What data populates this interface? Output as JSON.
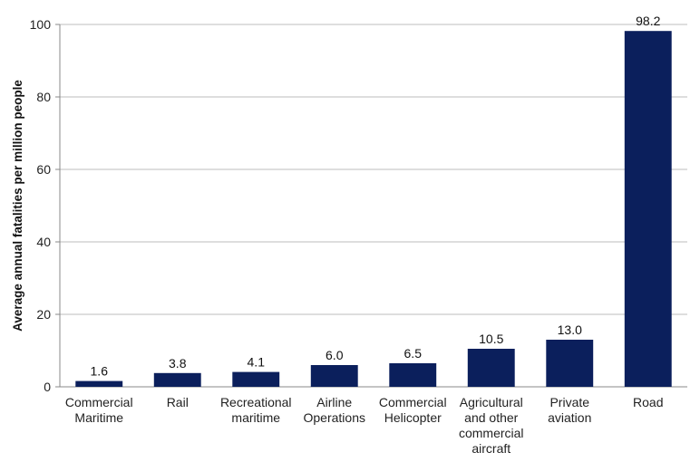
{
  "chart_data": {
    "type": "bar",
    "title": "",
    "xlabel": "",
    "ylabel": "Average annual fatalities per million people",
    "ylim": [
      0,
      100
    ],
    "yticks": [
      "0",
      "20",
      "40",
      "60",
      "80",
      "100"
    ],
    "grid": true,
    "legend": "none",
    "bar_color": "#0b1f5c",
    "categories": [
      [
        "Commercial",
        "Maritime"
      ],
      [
        "Rail"
      ],
      [
        "Recreational",
        "maritime"
      ],
      [
        "Airline",
        "Operations"
      ],
      [
        "Commercial",
        "Helicopter"
      ],
      [
        "Agricultural",
        "and other",
        "commercial",
        "aircraft"
      ],
      [
        "Private",
        "aviation"
      ],
      [
        "Road"
      ]
    ],
    "values": [
      1.6,
      3.8,
      4.1,
      6.0,
      6.5,
      10.5,
      13.0,
      98.2
    ],
    "value_labels": [
      "1.6",
      "3.8",
      "4.1",
      "6.0",
      "6.5",
      "10.5",
      "13.0",
      "98.2"
    ]
  }
}
